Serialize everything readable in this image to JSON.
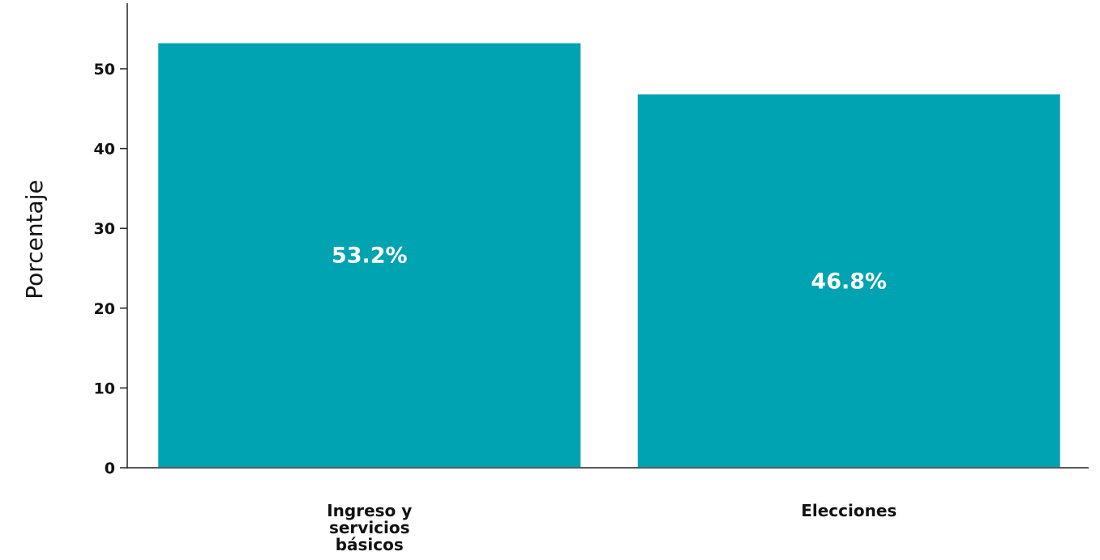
{
  "chart_data": {
    "type": "bar",
    "categories": [
      [
        "Ingreso y",
        "servicios",
        "básicos"
      ],
      [
        "Elecciones"
      ]
    ],
    "values": [
      53.2,
      46.8
    ],
    "value_labels": [
      "53.2%",
      "46.8%"
    ],
    "ylabel": "Porcentaje",
    "xlabel": "",
    "ylim": [
      0,
      56
    ],
    "yticks": [
      0,
      10,
      20,
      30,
      40,
      50
    ],
    "bar_color": "#00A3B1",
    "grid": false
  }
}
